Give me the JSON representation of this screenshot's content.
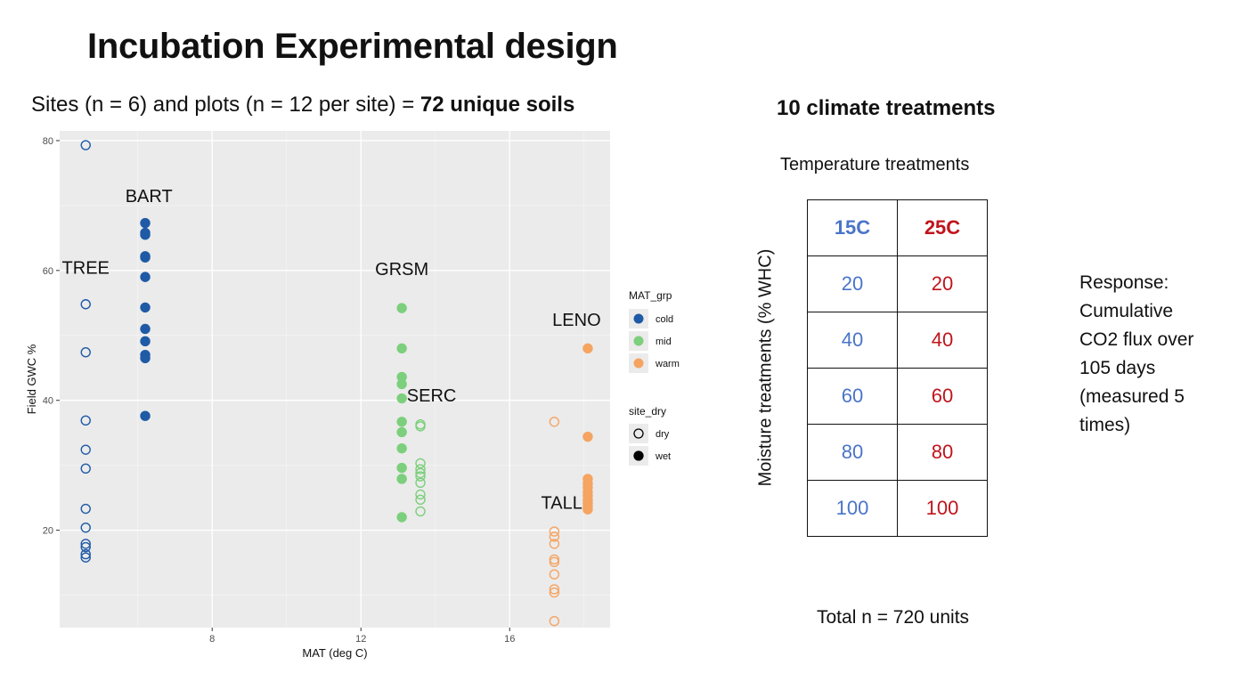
{
  "title": "Incubation Experimental design",
  "subtitle": {
    "prefix": "Sites (n = 6) and plots (n = 12 per site) = ",
    "bold": "72 unique soils"
  },
  "right": {
    "heading": "10 climate treatments",
    "temperature_heading": "Temperature treatments",
    "moisture_label": "Moisture treatments (% WHC)",
    "table": {
      "headers": [
        "15C",
        "25C"
      ],
      "rows": [
        [
          "20",
          "20"
        ],
        [
          "40",
          "40"
        ],
        [
          "60",
          "60"
        ],
        [
          "80",
          "80"
        ],
        [
          "100",
          "100"
        ]
      ]
    },
    "response_text": "Response: Cumulative CO2 flux over 105 days (measured 5 times)",
    "total": "Total n = 720 units"
  },
  "chart_data": {
    "type": "scatter",
    "xlabel": "MAT (deg C)",
    "ylabel": "Field GWC %",
    "xlim": [
      3.9,
      18.7
    ],
    "ylim": [
      5,
      81.5
    ],
    "x_ticks": [
      8,
      12,
      16
    ],
    "y_ticks": [
      20,
      40,
      60,
      80
    ],
    "grid": true,
    "legend_position": "right",
    "colors": {
      "cold": "#1f5aa6",
      "mid": "#7ccf7c",
      "warm": "#f5a462"
    },
    "legend": {
      "color_title": "MAT_grp",
      "color_items": [
        "cold",
        "mid",
        "warm"
      ],
      "shape_title": "site_dry",
      "shape_items": [
        "dry",
        "wet"
      ]
    },
    "site_labels": [
      {
        "name": "BART",
        "x": 6.3,
        "y": 70.5
      },
      {
        "name": "TREE",
        "x": 4.6,
        "y": 59.5
      },
      {
        "name": "GRSM",
        "x": 13.1,
        "y": 59.3
      },
      {
        "name": "LENO",
        "x": 17.8,
        "y": 51.5
      },
      {
        "name": "SERC",
        "x": 13.9,
        "y": 39.8
      },
      {
        "name": "TALL",
        "x": 17.4,
        "y": 23.3
      }
    ],
    "series": [
      {
        "name": "TREE",
        "group": "cold",
        "site_dry": "dry",
        "x": 4.6,
        "values": [
          79.3,
          54.8,
          47.4,
          36.9,
          32.4,
          29.5,
          23.3,
          20.4,
          17.9,
          17.4,
          16.3,
          15.8
        ]
      },
      {
        "name": "BART",
        "group": "cold",
        "site_dry": "wet",
        "x": 6.2,
        "values": [
          67.3,
          65.8,
          65.5,
          62.2,
          62.0,
          59.0,
          54.3,
          51.0,
          49.1,
          47.0,
          46.5,
          37.6
        ]
      },
      {
        "name": "GRSM",
        "group": "mid",
        "site_dry": "wet",
        "x": 13.1,
        "values": [
          54.2,
          48.0,
          43.6,
          42.5,
          40.3,
          36.7,
          35.1,
          32.6,
          29.6,
          27.9,
          22.0
        ]
      },
      {
        "name": "SERC",
        "group": "mid",
        "site_dry": "dry",
        "x": 13.6,
        "values": [
          36.3,
          36.0,
          30.3,
          29.4,
          28.8,
          28.3,
          27.3,
          25.5,
          24.7,
          22.9
        ]
      },
      {
        "name": "TALL",
        "group": "warm",
        "site_dry": "dry",
        "x": 17.2,
        "values": [
          36.7,
          19.8,
          19.0,
          17.9,
          15.5,
          15.1,
          13.2,
          10.9,
          10.4,
          6.0
        ]
      },
      {
        "name": "LENO",
        "group": "warm",
        "site_dry": "wet",
        "x": 18.1,
        "values": [
          48.0,
          34.4,
          27.9,
          27.2,
          26.6,
          25.9,
          25.3,
          24.7,
          24.2,
          23.7,
          23.2
        ]
      }
    ]
  }
}
